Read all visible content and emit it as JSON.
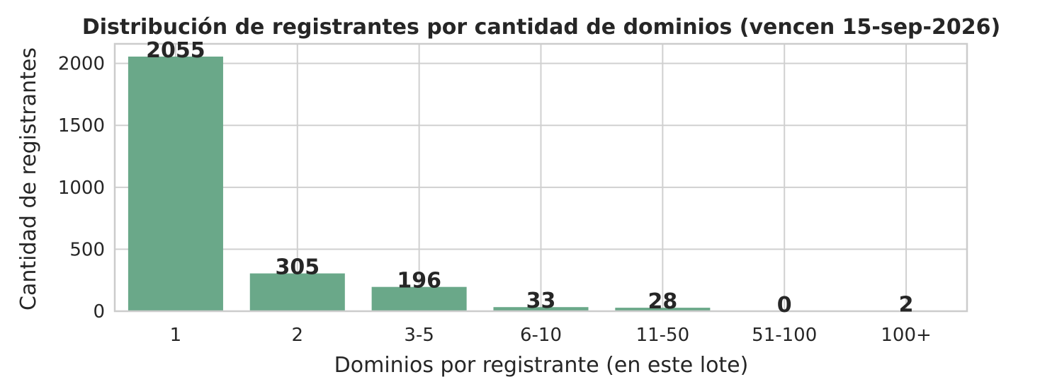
{
  "chart_data": {
    "type": "bar",
    "title": "Distribución de registrantes por cantidad de dominios (vencen 15-sep-2026)",
    "xlabel": "Dominios por registrante (en este lote)",
    "ylabel": "Cantidad de registrantes",
    "categories": [
      "1",
      "2",
      "3-5",
      "6-10",
      "11-50",
      "51-100",
      "100+"
    ],
    "values": [
      2055,
      305,
      196,
      33,
      28,
      0,
      2
    ],
    "data_labels": [
      "2055",
      "305",
      "196",
      "33",
      "28",
      "0",
      "2"
    ],
    "yticks": [
      0,
      500,
      1000,
      1500,
      2000
    ],
    "ytick_labels": [
      "0",
      "500",
      "1000",
      "1500",
      "2000"
    ],
    "ylim": [
      0,
      2157.75
    ],
    "grid": true,
    "colors": {
      "bar": "#6aa889",
      "grid": "#d0d0d0",
      "frame": "#cccccc",
      "text": "#262626"
    }
  }
}
